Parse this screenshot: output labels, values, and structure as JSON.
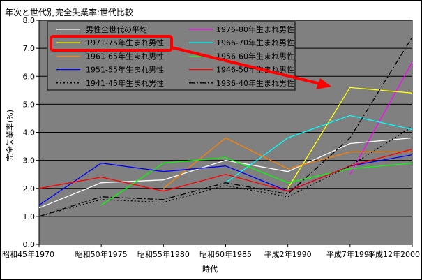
{
  "chart_data": {
    "type": "line",
    "title": "年次と世代別完全失業率:世代比較",
    "xlabel": "時代",
    "ylabel": "完全失業率(%)",
    "ylim": [
      0,
      8
    ],
    "yticks": [
      "0.0",
      "1.0",
      "2.0",
      "3.0",
      "4.0",
      "5.0",
      "6.0",
      "7.0",
      "8.0"
    ],
    "categories": [
      "昭和45年1970",
      "昭和50年1975",
      "昭和55年1980",
      "昭和60年1985",
      "平成2年1990",
      "平成7年1995",
      "平成12年2000"
    ],
    "legend_position": "top-left (inside plot)",
    "grid": "horizontal",
    "plot_background": "#808080",
    "series": [
      {
        "name": "男性全世代の平均",
        "color": "#ffffff",
        "dash": "solid",
        "values": [
          1.3,
          2.2,
          2.3,
          3.0,
          2.6,
          3.6,
          3.8
        ]
      },
      {
        "name": "1976-80年生まれ男性",
        "color": "#ff00ff",
        "dash": "solid",
        "values": [
          null,
          null,
          null,
          null,
          null,
          2.5,
          6.5
        ]
      },
      {
        "name": "1971-75年生まれ男性",
        "color": "#ffff00",
        "dash": "solid",
        "values": [
          null,
          null,
          null,
          null,
          2.0,
          5.6,
          5.4
        ]
      },
      {
        "name": "1966-70年生まれ男性",
        "color": "#00ffff",
        "dash": "solid",
        "values": [
          null,
          null,
          null,
          2.2,
          3.8,
          4.6,
          4.1
        ]
      },
      {
        "name": "1961-65年生まれ男性",
        "color": "#ff8000",
        "dash": "solid",
        "values": [
          null,
          null,
          2.0,
          3.8,
          2.7,
          3.3,
          3.3
        ]
      },
      {
        "name": "1956-60年生まれ男性",
        "color": "#00ff00",
        "dash": "solid",
        "values": [
          null,
          1.4,
          2.9,
          3.1,
          2.2,
          2.7,
          2.9
        ]
      },
      {
        "name": "1951-55年生まれ男性",
        "color": "#0000ff",
        "dash": "solid",
        "values": [
          1.4,
          2.9,
          2.6,
          2.8,
          1.9,
          2.8,
          3.2
        ]
      },
      {
        "name": "1946-50年生まれ男性",
        "color": "#ff0000",
        "dash": "solid",
        "values": [
          2.0,
          2.4,
          1.9,
          2.5,
          1.9,
          2.8,
          3.4
        ]
      },
      {
        "name": "1941-45年生まれ男性",
        "color": "#000000",
        "dash": "dot",
        "values": [
          1.0,
          1.6,
          1.5,
          2.1,
          1.7,
          2.8,
          4.2
        ]
      },
      {
        "name": "1936-40年生まれ男性",
        "color": "#000000",
        "dash": "dashdot",
        "values": [
          1.0,
          1.7,
          1.6,
          2.2,
          1.8,
          3.8,
          7.4
        ]
      }
    ],
    "annotation": {
      "type": "highlight-box-with-arrow",
      "target_series": "1971-75年生まれ男性",
      "color": "#ff0000"
    }
  }
}
